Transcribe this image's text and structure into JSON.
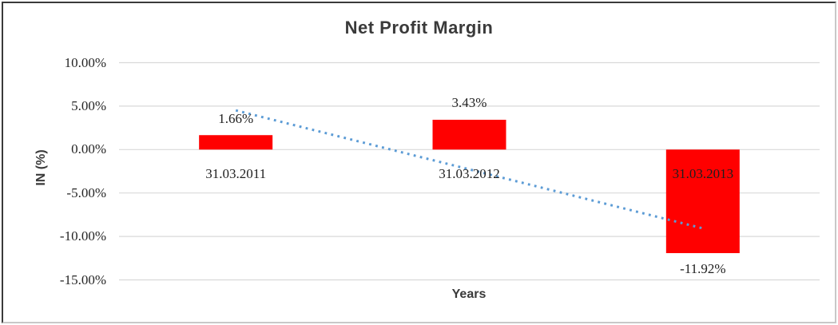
{
  "chart_data": {
    "type": "bar",
    "title": "Net Profit Margin",
    "xlabel": "Years",
    "ylabel": "IN (%)",
    "categories": [
      "31.03.2011",
      "31.03.2012",
      "31.03.2013"
    ],
    "values": [
      1.66,
      3.43,
      -11.92
    ],
    "data_labels": [
      "1.66%",
      "3.43%",
      "-11.92%"
    ],
    "ylim": [
      -15,
      10
    ],
    "ytick_step": 5,
    "ytick_labels": [
      "10.00%",
      "5.00%",
      "0.00%",
      "-5.00%",
      "-10.00%",
      "-15.00%"
    ],
    "grid": true,
    "legend": "none",
    "bar_color": "#ff0000",
    "gridline_color": "#d9d9d9",
    "text_color": "#262626",
    "title_color": "#3a3a3a",
    "trendline": {
      "type": "linear",
      "style": "dotted",
      "color": "#5b9bd5",
      "fit_values_pct": [
        4.51,
        -2.28,
        -9.07
      ]
    }
  }
}
